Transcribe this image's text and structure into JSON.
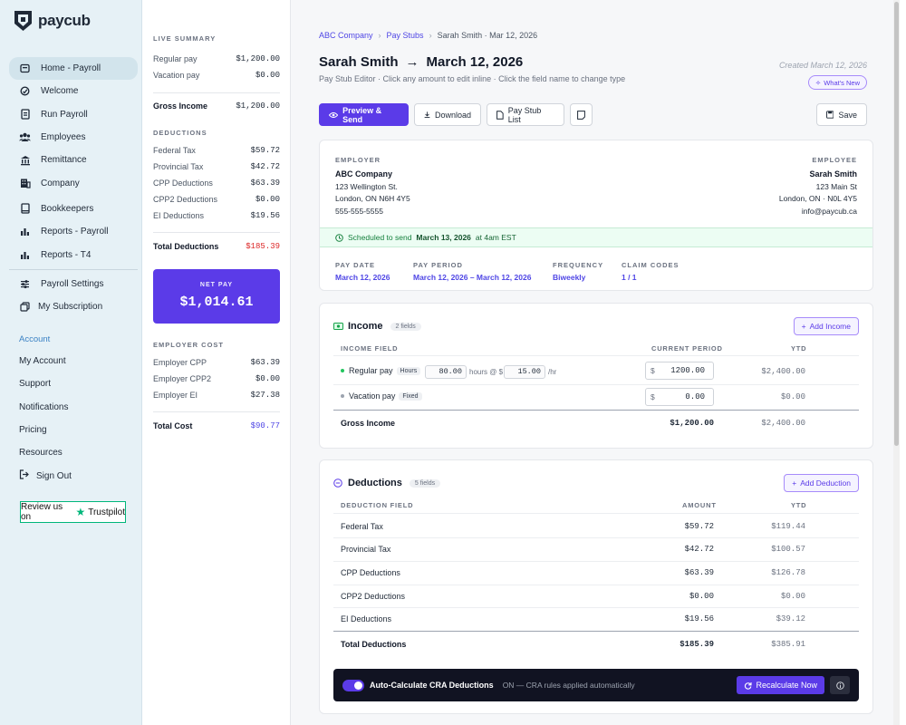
{
  "brand": {
    "name": "paycub"
  },
  "nav": {
    "main": [
      {
        "label": "Home - Payroll",
        "icon": "home-icon"
      },
      {
        "label": "Welcome",
        "icon": "hand-icon"
      },
      {
        "label": "Run Payroll",
        "icon": "document-icon"
      },
      {
        "label": "Employees",
        "icon": "users-icon"
      },
      {
        "label": "Remittance",
        "icon": "bank-icon"
      },
      {
        "label": "Company",
        "icon": "building-icon"
      }
    ],
    "secondary": [
      {
        "label": "Bookkeepers",
        "icon": "book-icon"
      },
      {
        "label": "Reports - Payroll",
        "icon": "bar-chart-icon"
      },
      {
        "label": "Reports - T4",
        "icon": "bar-chart-icon"
      }
    ],
    "settings": [
      {
        "label": "Payroll Settings",
        "icon": "sliders-icon"
      },
      {
        "label": "My Subscription",
        "icon": "copy-icon"
      }
    ],
    "account_heading": "Account",
    "account": [
      {
        "label": "My Account"
      },
      {
        "label": "Support"
      },
      {
        "label": "Notifications"
      },
      {
        "label": "Pricing"
      },
      {
        "label": "Resources"
      },
      {
        "label": "Sign Out",
        "icon": "sign-out-icon"
      }
    ],
    "trustpilot": {
      "prefix": "Review us on",
      "brand": "Trustpilot"
    }
  },
  "summary": {
    "live_heading": "LIVE SUMMARY",
    "earnings": [
      {
        "label": "Regular pay",
        "value": "$1,200.00"
      },
      {
        "label": "Vacation pay",
        "value": "$0.00"
      }
    ],
    "gross": {
      "label": "Gross Income",
      "value": "$1,200.00"
    },
    "deductions_heading": "DEDUCTIONS",
    "deductions": [
      {
        "label": "Federal Tax",
        "value": "$59.72"
      },
      {
        "label": "Provincial Tax",
        "value": "$42.72"
      },
      {
        "label": "CPP Deductions",
        "value": "$63.39"
      },
      {
        "label": "CPP2 Deductions",
        "value": "$0.00"
      },
      {
        "label": "EI Deductions",
        "value": "$19.56"
      }
    ],
    "total_deductions": {
      "label": "Total Deductions",
      "value": "$185.39"
    },
    "net_pay": {
      "label": "NET PAY",
      "value": "$1,014.61"
    },
    "employer_heading": "EMPLOYER COST",
    "employer": [
      {
        "label": "Employer CPP",
        "value": "$63.39"
      },
      {
        "label": "Employer CPP2",
        "value": "$0.00"
      },
      {
        "label": "Employer EI",
        "value": "$27.38"
      }
    ],
    "total_cost": {
      "label": "Total Cost",
      "value": "$90.77"
    }
  },
  "header": {
    "breadcrumb": [
      "ABC Company",
      "Pay Stubs",
      "Sarah Smith · Mar 12, 2026"
    ],
    "employee_name": "Sarah Smith",
    "arrow": "→",
    "date": "March 12, 2026",
    "subtitle": "Pay Stub Editor · Click any amount to edit inline · Click the field name to change type",
    "created": "Created March 12, 2026",
    "whats_new": "What's New"
  },
  "toolbar": {
    "preview_send": "Preview & Send",
    "download": "Download",
    "pay_stub_list": "Pay Stub List",
    "save": "Save"
  },
  "stub": {
    "employer_label": "EMPLOYER",
    "employer": {
      "name": "ABC Company",
      "line1": "123 Wellington St.",
      "line2": "London, ON N6H 4Y5",
      "phone": "555-555-5555"
    },
    "employee_label": "EMPLOYEE",
    "employee": {
      "name": "Sarah Smith",
      "line1": "123 Main St",
      "line2": "London, ON · N0L 4Y5",
      "email": "info@paycub.ca"
    },
    "schedule": {
      "prefix": "Scheduled to send",
      "date": "March 13, 2026",
      "suffix": "at 4am EST"
    },
    "pay_date": {
      "label": "PAY DATE",
      "value": "March 12, 2026"
    },
    "pay_period": {
      "label": "PAY PERIOD",
      "value": "March 12, 2026 – March 12, 2026"
    },
    "frequency": {
      "label": "FREQUENCY",
      "value": "Biweekly"
    },
    "claim_codes": {
      "label": "CLAIM CODES",
      "value": "1 / 1"
    }
  },
  "income": {
    "title": "Income",
    "count": "2 fields",
    "add_button": "Add Income",
    "col_field": "INCOME FIELD",
    "col_current": "CURRENT PERIOD",
    "col_ytd": "YTD",
    "regular": {
      "label": "Regular pay",
      "tag": "Hours",
      "hours": "80.00",
      "hours_text": "hours @ $",
      "rate": "15.00",
      "per": "/hr",
      "currency": "$",
      "amount": "1200.00",
      "ytd": "$2,400.00"
    },
    "vacation": {
      "label": "Vacation pay",
      "tag": "Fixed",
      "currency": "$",
      "amount": "0.00",
      "ytd": "$0.00"
    },
    "gross": {
      "label": "Gross Income",
      "current": "$1,200.00",
      "ytd": "$2,400.00"
    }
  },
  "deductions": {
    "title": "Deductions",
    "count": "5 fields",
    "add_button": "Add Deduction",
    "col_field": "DEDUCTION FIELD",
    "col_amount": "AMOUNT",
    "col_ytd": "YTD",
    "rows": [
      {
        "label": "Federal Tax",
        "amount": "$59.72",
        "ytd": "$119.44"
      },
      {
        "label": "Provincial Tax",
        "amount": "$42.72",
        "ytd": "$100.57"
      },
      {
        "label": "CPP Deductions",
        "amount": "$63.39",
        "ytd": "$126.78"
      },
      {
        "label": "CPP2 Deductions",
        "amount": "$0.00",
        "ytd": "$0.00"
      },
      {
        "label": "EI Deductions",
        "amount": "$19.56",
        "ytd": "$39.12"
      }
    ],
    "total": {
      "label": "Total Deductions",
      "amount": "$185.39",
      "ytd": "$385.91"
    },
    "auto": {
      "label": "Auto-Calculate CRA Deductions",
      "status": "ON — CRA rules applied automatically",
      "button": "Recalculate Now"
    }
  },
  "colors": {
    "accent": "#5b3be8",
    "sidebar_bg": "#e6f1f6",
    "danger": "#dc2626",
    "success": "#15803d"
  }
}
